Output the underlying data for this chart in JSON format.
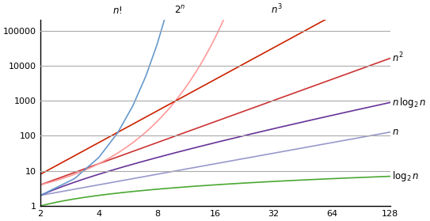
{
  "title": "",
  "x_ticks": [
    2,
    4,
    8,
    16,
    32,
    64,
    128
  ],
  "x_min": 2,
  "x_max": 128,
  "y_min": 1,
  "y_max": 200000,
  "y_ticks": [
    1,
    10,
    100,
    1000,
    10000,
    100000
  ],
  "background_color": "#ffffff",
  "curves": {
    "log2n": {
      "color": "#4aa832",
      "label": "log₂n"
    },
    "n": {
      "color": "#9999cc",
      "label": "n"
    },
    "nlog2n": {
      "color": "#663399",
      "label": "n log₂n"
    },
    "n2": {
      "color": "#cc3333",
      "label": "n²"
    },
    "2n": {
      "color": "#ff9999",
      "label": "2ⁿ"
    },
    "n3": {
      "color": "#cc2200",
      "label": "n³"
    },
    "nfact": {
      "color": "#6699cc",
      "label": "n!"
    }
  },
  "label_positions": {
    "log2n": [
      1.0,
      "log₂n"
    ],
    "n": [
      1.0,
      "n"
    ],
    "nlog2n": [
      1.0,
      "n log₂n"
    ],
    "n2": [
      1.0,
      "n²"
    ],
    "2n": [
      0.0,
      "2ⁿ"
    ],
    "n3": [
      0.7,
      "n³"
    ],
    "nfact": [
      0.0,
      "n!"
    ]
  }
}
